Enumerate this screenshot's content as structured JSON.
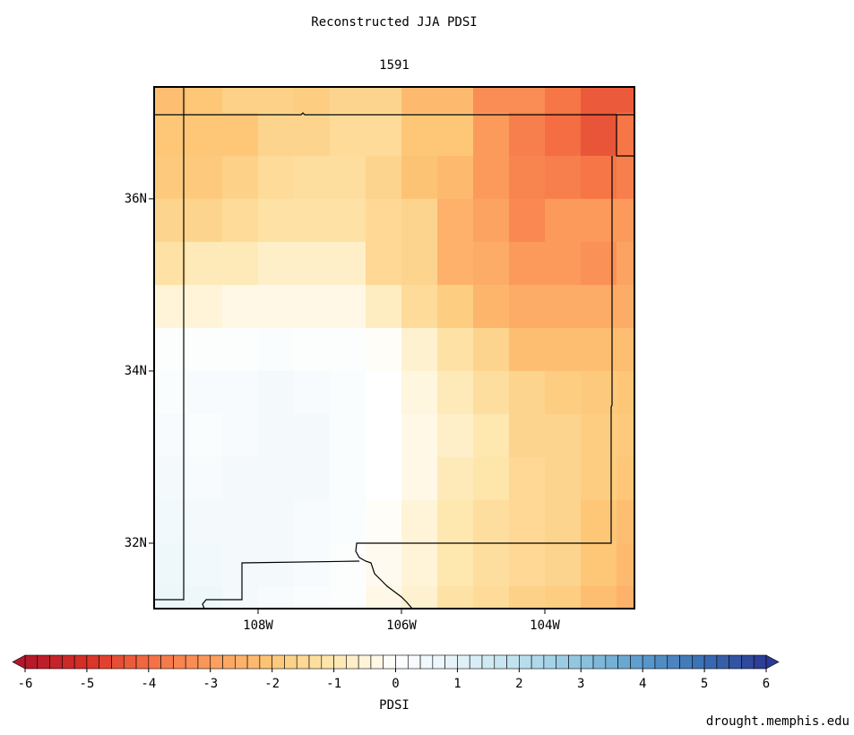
{
  "chart_data": {
    "type": "heatmap",
    "title": "Reconstructed JJA PDSI",
    "subtitle": "1591",
    "x": [
      -109.25,
      -108.75,
      -108.25,
      -107.75,
      -107.25,
      -106.75,
      -106.25,
      -105.75,
      -105.25,
      -104.75,
      -104.25,
      -103.75,
      -103.25,
      -102.75
    ],
    "y": [
      37.25,
      36.75,
      36.25,
      35.75,
      35.25,
      34.75,
      34.25,
      33.75,
      33.25,
      32.75,
      32.25,
      31.75,
      31.25
    ],
    "values": [
      [
        -2.2,
        -2.0,
        -1.7,
        -1.7,
        -1.8,
        -1.6,
        -1.6,
        -2.3,
        -2.3,
        -3.3,
        -3.3,
        -3.8,
        -4.3,
        -4.3
      ],
      [
        -2.0,
        -2.0,
        -2.0,
        -1.6,
        -1.6,
        -1.4,
        -1.4,
        -2.0,
        -2.0,
        -3.0,
        -3.6,
        -4.0,
        -4.4,
        -3.8
      ],
      [
        -1.9,
        -1.9,
        -1.7,
        -1.4,
        -1.3,
        -1.3,
        -1.6,
        -2.1,
        -2.3,
        -3.0,
        -3.5,
        -3.6,
        -3.8,
        -3.6
      ],
      [
        -1.6,
        -1.6,
        -1.4,
        -1.2,
        -1.2,
        -1.2,
        -1.5,
        -1.6,
        -2.5,
        -2.8,
        -3.4,
        -3.0,
        -3.0,
        -3.0
      ],
      [
        -1.2,
        -0.9,
        -0.9,
        -0.7,
        -0.7,
        -0.7,
        -1.5,
        -1.6,
        -2.5,
        -2.6,
        -3.0,
        -3.0,
        -3.2,
        -2.8
      ],
      [
        -0.5,
        -0.5,
        -0.3,
        -0.3,
        -0.3,
        -0.3,
        -0.8,
        -1.4,
        -1.8,
        -2.4,
        -2.6,
        -2.6,
        -2.6,
        -2.6
      ],
      [
        0.1,
        0.1,
        0.1,
        0.2,
        0.1,
        0.1,
        -0.1,
        -0.6,
        -1.2,
        -1.6,
        -2.2,
        -2.2,
        -2.2,
        -2.2
      ],
      [
        0.2,
        0.3,
        0.3,
        0.4,
        0.3,
        0.2,
        0.0,
        -0.4,
        -0.9,
        -1.3,
        -1.6,
        -1.8,
        -1.9,
        -2.0
      ],
      [
        0.3,
        0.2,
        0.3,
        0.4,
        0.4,
        0.2,
        0.0,
        -0.3,
        -0.7,
        -1.0,
        -1.6,
        -1.6,
        -1.8,
        -1.9
      ],
      [
        0.4,
        0.3,
        0.4,
        0.4,
        0.4,
        0.2,
        0.0,
        -0.3,
        -0.9,
        -1.1,
        -1.5,
        -1.6,
        -1.8,
        -2.0
      ],
      [
        0.5,
        0.4,
        0.4,
        0.4,
        0.3,
        0.2,
        -0.1,
        -0.5,
        -1.0,
        -1.3,
        -1.5,
        -1.6,
        -2.0,
        -2.2
      ],
      [
        0.6,
        0.5,
        0.4,
        0.4,
        0.3,
        0.1,
        -0.2,
        -0.5,
        -1.0,
        -1.3,
        -1.5,
        -1.6,
        -2.0,
        -2.3
      ],
      [
        0.7,
        0.6,
        0.4,
        0.3,
        0.2,
        0.1,
        -0.3,
        -0.6,
        -1.2,
        -1.4,
        -1.7,
        -1.8,
        -2.2,
        -2.5
      ]
    ],
    "xlim": [
      -109.45,
      -102.75
    ],
    "ylim": [
      31.24,
      37.3
    ],
    "xticks": [
      {
        "value": -108,
        "label": "108W"
      },
      {
        "value": -106,
        "label": "106W"
      },
      {
        "value": -104,
        "label": "104W"
      }
    ],
    "yticks": [
      {
        "value": 36,
        "label": "36N"
      },
      {
        "value": 34,
        "label": "34N"
      },
      {
        "value": 32,
        "label": "32N"
      }
    ],
    "colorbar": {
      "label": "PDSI",
      "ticks": [
        -6,
        -5,
        -4,
        -3,
        -2,
        -1,
        0,
        1,
        2,
        3,
        4,
        5,
        6
      ],
      "colors": [
        "#b2182b",
        "#d73027",
        "#f46d43",
        "#fc9a5c",
        "#fdc777",
        "#fee8b0",
        "#ffffff",
        "#e3f3f8",
        "#bde0ee",
        "#8ec4de",
        "#5a9bcc",
        "#3b6db3",
        "#2b3a93"
      ]
    }
  },
  "credit": "drought.memphis.edu"
}
